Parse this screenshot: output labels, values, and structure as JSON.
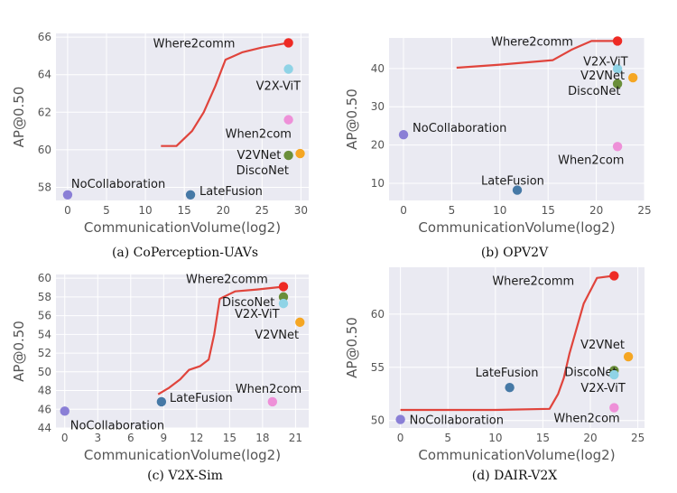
{
  "chart_data": [
    {
      "type": "scatter",
      "panel": "a",
      "caption": "(a) CoPerception-UAVs",
      "xlabel": "CommunicationVolume(log2)",
      "ylabel": "AP@0.50",
      "xlim": [
        -1.5,
        31
      ],
      "ylim": [
        57.3,
        66.2
      ],
      "xticks": [
        0,
        5,
        10,
        15,
        20,
        25,
        30
      ],
      "yticks": [
        58,
        60,
        62,
        64,
        66
      ],
      "curve": [
        [
          12,
          60.2
        ],
        [
          14,
          60.2
        ],
        [
          16,
          61
        ],
        [
          17.5,
          62
        ],
        [
          19,
          63.4
        ],
        [
          20.3,
          64.8
        ],
        [
          22.5,
          65.2
        ],
        [
          25,
          65.45
        ],
        [
          28.4,
          65.7
        ]
      ],
      "points": [
        {
          "name": "Where2comm",
          "x": 28.4,
          "y": 65.7,
          "color": "#ee2a24"
        },
        {
          "name": "V2X-ViT",
          "x": 28.4,
          "y": 64.3,
          "color": "#8fd3e6"
        },
        {
          "name": "When2com",
          "x": 28.4,
          "y": 61.6,
          "color": "#ee90d8"
        },
        {
          "name": "V2VNet",
          "x": 29.9,
          "y": 59.8,
          "color": "#f5a623"
        },
        {
          "name": "DiscoNet",
          "x": 28.4,
          "y": 59.7,
          "color": "#6a8e3a"
        },
        {
          "name": "NoCollaboration",
          "x": 0,
          "y": 57.6,
          "color": "#8a7fd6"
        },
        {
          "name": "LateFusion",
          "x": 15.8,
          "y": 57.6,
          "color": "#4679a6"
        }
      ]
    },
    {
      "type": "scatter",
      "panel": "b",
      "caption": "(b) OPV2V",
      "xlabel": "CommunicationVolume(log2)",
      "ylabel": "AP@0.50",
      "xlim": [
        -1.5,
        25
      ],
      "ylim": [
        5.5,
        48
      ],
      "xticks": [
        0,
        5,
        10,
        15,
        20,
        25
      ],
      "yticks": [
        10,
        20,
        30,
        40
      ],
      "curve": [
        [
          5.5,
          40.2
        ],
        [
          10,
          41
        ],
        [
          15.5,
          42.2
        ],
        [
          17.5,
          45
        ],
        [
          19.5,
          47.2
        ],
        [
          22.2,
          47.2
        ]
      ],
      "points": [
        {
          "name": "Where2comm",
          "x": 22.2,
          "y": 47.2,
          "color": "#ee2a24"
        },
        {
          "name": "V2X-ViT",
          "x": 22.2,
          "y": 39.9,
          "color": "#8fd3e6"
        },
        {
          "name": "V2VNet",
          "x": 23.8,
          "y": 37.6,
          "color": "#f5a623"
        },
        {
          "name": "DiscoNet",
          "x": 22.2,
          "y": 36.0,
          "color": "#6a8e3a"
        },
        {
          "name": "NoCollaboration",
          "x": 0,
          "y": 22.7,
          "color": "#8a7fd6"
        },
        {
          "name": "When2com",
          "x": 22.2,
          "y": 19.6,
          "color": "#ee90d8"
        },
        {
          "name": "LateFusion",
          "x": 11.8,
          "y": 8.2,
          "color": "#4679a6"
        }
      ]
    },
    {
      "type": "scatter",
      "panel": "c",
      "caption": "(c) V2X-Sim",
      "xlabel": "CommunicationVolume(log2)",
      "ylabel": "AP@0.50",
      "xlim": [
        -0.8,
        22.2
      ],
      "ylim": [
        44,
        60.4
      ],
      "xticks": [
        0,
        3,
        6,
        9,
        12,
        15,
        18,
        21
      ],
      "yticks": [
        44,
        46,
        48,
        50,
        52,
        54,
        56,
        58,
        60
      ],
      "curve": [
        [
          8.5,
          47.6
        ],
        [
          9.5,
          48.3
        ],
        [
          10.5,
          49.2
        ],
        [
          11.3,
          50.2
        ],
        [
          12.3,
          50.6
        ],
        [
          13.1,
          51.3
        ],
        [
          13.6,
          54
        ],
        [
          14.1,
          57.8
        ],
        [
          15.5,
          58.6
        ],
        [
          17.5,
          58.8
        ],
        [
          19.9,
          59.1
        ]
      ],
      "points": [
        {
          "name": "Where2comm",
          "x": 19.9,
          "y": 59.1,
          "color": "#ee2a24"
        },
        {
          "name": "DiscoNet",
          "x": 19.9,
          "y": 58.0,
          "color": "#6a8e3a"
        },
        {
          "name": "V2X-ViT",
          "x": 19.9,
          "y": 57.3,
          "color": "#8fd3e6"
        },
        {
          "name": "V2VNet",
          "x": 21.4,
          "y": 55.3,
          "color": "#f5a623"
        },
        {
          "name": "When2com",
          "x": 18.9,
          "y": 46.8,
          "color": "#ee90d8"
        },
        {
          "name": "LateFusion",
          "x": 8.8,
          "y": 46.8,
          "color": "#4679a6"
        },
        {
          "name": "NoCollaboration",
          "x": 0,
          "y": 45.8,
          "color": "#8a7fd6"
        }
      ]
    },
    {
      "type": "scatter",
      "panel": "d",
      "caption": "(d) DAIR-V2X",
      "xlabel": "CommunicationVolume(log2)",
      "ylabel": "AP@0.50",
      "xlim": [
        -1.2,
        25.7
      ],
      "ylim": [
        49.3,
        64.4
      ],
      "xticks": [
        0,
        5,
        10,
        15,
        20,
        25
      ],
      "yticks": [
        50,
        55,
        60
      ],
      "curve": [
        [
          0,
          51
        ],
        [
          10,
          51
        ],
        [
          15.7,
          51.1
        ],
        [
          16.6,
          52.5
        ],
        [
          17.2,
          54
        ],
        [
          17.8,
          56.3
        ],
        [
          18.5,
          58.5
        ],
        [
          19.3,
          61
        ],
        [
          20.7,
          63.4
        ],
        [
          22.5,
          63.6
        ]
      ],
      "points": [
        {
          "name": "Where2comm",
          "x": 22.5,
          "y": 63.6,
          "color": "#ee2a24"
        },
        {
          "name": "V2VNet",
          "x": 24.0,
          "y": 56.0,
          "color": "#f5a623"
        },
        {
          "name": "DiscoNet",
          "x": 22.5,
          "y": 54.7,
          "color": "#6a8e3a"
        },
        {
          "name": "V2X-ViT",
          "x": 22.5,
          "y": 54.3,
          "color": "#8fd3e6"
        },
        {
          "name": "LateFusion",
          "x": 11.5,
          "y": 53.1,
          "color": "#4679a6"
        },
        {
          "name": "When2com",
          "x": 22.5,
          "y": 51.2,
          "color": "#ee90d8"
        },
        {
          "name": "NoCollaboration",
          "x": 0,
          "y": 50.1,
          "color": "#8a7fd6"
        }
      ]
    }
  ]
}
